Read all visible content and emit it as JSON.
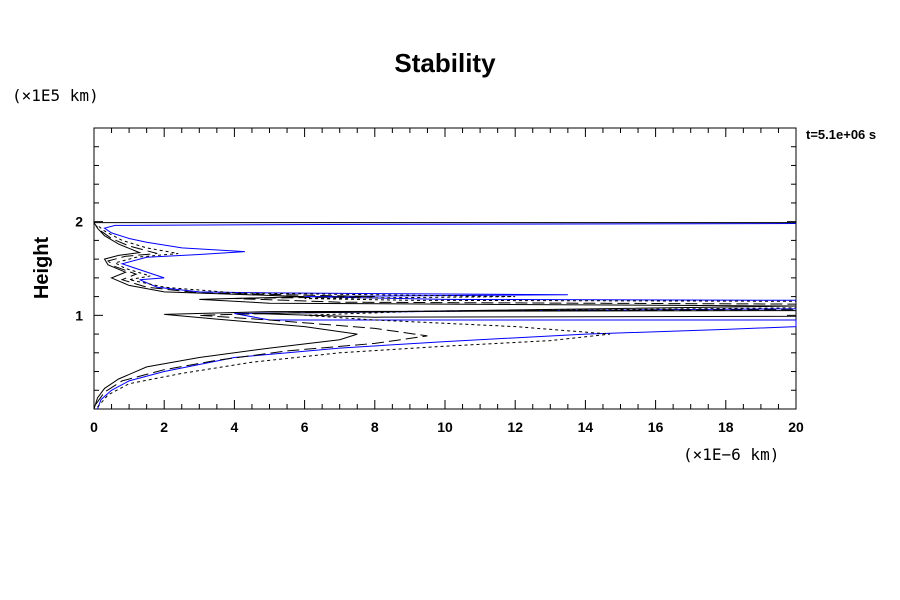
{
  "chart_data": {
    "type": "line",
    "title": "Stability",
    "ylabel": "Height",
    "xlabel": "",
    "x_multiplier": "(×1E−6 km)",
    "y_multiplier": "(×1E5 km)",
    "annotation": "t=5.1e+06 s",
    "xlim": [
      0,
      20
    ],
    "ylim": [
      0,
      3
    ],
    "x_ticks": [
      "0",
      "2",
      "4",
      "6",
      "8",
      "10",
      "12",
      "14",
      "16",
      "18",
      "20"
    ],
    "y_ticks": [
      "1",
      "2"
    ],
    "grid": false,
    "legend": "none",
    "series": [
      {
        "color": "#0000ff",
        "style": "solid",
        "points": [
          [
            0.1,
            0.0
          ],
          [
            0.2,
            0.1
          ],
          [
            0.5,
            0.2
          ],
          [
            1.0,
            0.3
          ],
          [
            2.0,
            0.4
          ],
          [
            4.0,
            0.55
          ],
          [
            7.0,
            0.65
          ],
          [
            10.0,
            0.72
          ],
          [
            14.0,
            0.8
          ],
          [
            18.0,
            0.85
          ],
          [
            20.0,
            0.88
          ],
          [
            20.0,
            0.95
          ],
          [
            5.0,
            0.95
          ],
          [
            4.0,
            1.02
          ],
          [
            12.0,
            1.05
          ],
          [
            20.0,
            1.07
          ],
          [
            20.0,
            1.16
          ],
          [
            10.0,
            1.17
          ],
          [
            6.0,
            1.2
          ],
          [
            13.5,
            1.22
          ],
          [
            5.0,
            1.24
          ],
          [
            3.0,
            1.25
          ],
          [
            1.8,
            1.3
          ],
          [
            1.3,
            1.38
          ],
          [
            2.0,
            1.4
          ],
          [
            1.2,
            1.5
          ],
          [
            0.8,
            1.55
          ],
          [
            1.5,
            1.62
          ],
          [
            3.0,
            1.65
          ],
          [
            4.3,
            1.68
          ],
          [
            2.5,
            1.72
          ],
          [
            1.5,
            1.78
          ],
          [
            1.0,
            1.82
          ],
          [
            0.5,
            1.88
          ],
          [
            0.3,
            1.93
          ],
          [
            0.6,
            1.96
          ],
          [
            6.5,
            1.97
          ],
          [
            20.0,
            1.98
          ]
        ]
      },
      {
        "color": "#000000",
        "style": "dotted",
        "points": [
          [
            0.1,
            0.02
          ],
          [
            0.4,
            0.15
          ],
          [
            1.0,
            0.27
          ],
          [
            2.5,
            0.38
          ],
          [
            4.5,
            0.5
          ],
          [
            7.0,
            0.6
          ],
          [
            10.0,
            0.67
          ],
          [
            13.0,
            0.73
          ],
          [
            14.7,
            0.8
          ],
          [
            12.0,
            0.88
          ],
          [
            8.0,
            0.95
          ],
          [
            6.0,
            1.0
          ],
          [
            9.0,
            1.04
          ],
          [
            14.5,
            1.06
          ],
          [
            20.0,
            1.08
          ],
          [
            20.0,
            1.15
          ],
          [
            9.0,
            1.16
          ],
          [
            6.0,
            1.18
          ],
          [
            12.0,
            1.2
          ],
          [
            4.0,
            1.24
          ],
          [
            2.0,
            1.3
          ],
          [
            1.0,
            1.38
          ],
          [
            1.6,
            1.42
          ],
          [
            0.9,
            1.5
          ],
          [
            0.6,
            1.56
          ],
          [
            1.2,
            1.62
          ],
          [
            2.4,
            1.66
          ],
          [
            1.5,
            1.72
          ],
          [
            0.8,
            1.8
          ],
          [
            0.3,
            1.9
          ],
          [
            0.1,
            1.96
          ]
        ]
      },
      {
        "color": "#000000",
        "style": "longdash",
        "points": [
          [
            0.05,
            0.05
          ],
          [
            0.3,
            0.18
          ],
          [
            0.8,
            0.3
          ],
          [
            2.0,
            0.42
          ],
          [
            3.5,
            0.52
          ],
          [
            5.5,
            0.62
          ],
          [
            8.0,
            0.7
          ],
          [
            9.5,
            0.78
          ],
          [
            8.0,
            0.86
          ],
          [
            5.0,
            0.95
          ],
          [
            3.0,
            1.0
          ],
          [
            6.0,
            1.03
          ],
          [
            11.0,
            1.05
          ],
          [
            20.0,
            1.06
          ],
          [
            20.0,
            1.12
          ],
          [
            7.0,
            1.14
          ],
          [
            4.0,
            1.18
          ],
          [
            8.0,
            1.2
          ],
          [
            3.0,
            1.24
          ],
          [
            1.5,
            1.3
          ],
          [
            0.8,
            1.38
          ],
          [
            1.2,
            1.44
          ],
          [
            0.6,
            1.52
          ],
          [
            0.4,
            1.58
          ],
          [
            0.9,
            1.63
          ],
          [
            1.8,
            1.66
          ],
          [
            1.0,
            1.74
          ],
          [
            0.5,
            1.82
          ],
          [
            0.2,
            1.9
          ],
          [
            0.05,
            1.96
          ]
        ]
      },
      {
        "color": "#000000",
        "style": "solid",
        "points": [
          [
            0.0,
            0.0
          ],
          [
            0.1,
            0.12
          ],
          [
            0.3,
            0.22
          ],
          [
            0.7,
            0.32
          ],
          [
            1.5,
            0.45
          ],
          [
            3.0,
            0.55
          ],
          [
            5.0,
            0.65
          ],
          [
            7.0,
            0.74
          ],
          [
            7.5,
            0.8
          ],
          [
            6.0,
            0.88
          ],
          [
            3.5,
            0.96
          ],
          [
            2.0,
            1.01
          ],
          [
            5.0,
            1.04
          ],
          [
            20.0,
            1.05
          ],
          [
            20.0,
            0.99
          ],
          [
            8.0,
            0.98
          ],
          [
            4.5,
            1.02
          ],
          [
            20.0,
            1.1
          ],
          [
            5.0,
            1.13
          ],
          [
            3.0,
            1.17
          ],
          [
            6.0,
            1.2
          ],
          [
            2.0,
            1.25
          ],
          [
            1.0,
            1.32
          ],
          [
            0.5,
            1.4
          ],
          [
            0.9,
            1.46
          ],
          [
            0.4,
            1.54
          ],
          [
            0.3,
            1.6
          ],
          [
            0.7,
            1.64
          ],
          [
            1.3,
            1.67
          ],
          [
            0.7,
            1.76
          ],
          [
            0.3,
            1.85
          ],
          [
            0.1,
            1.93
          ],
          [
            0.0,
            1.99
          ],
          [
            20.0,
            1.99
          ]
        ]
      }
    ]
  }
}
